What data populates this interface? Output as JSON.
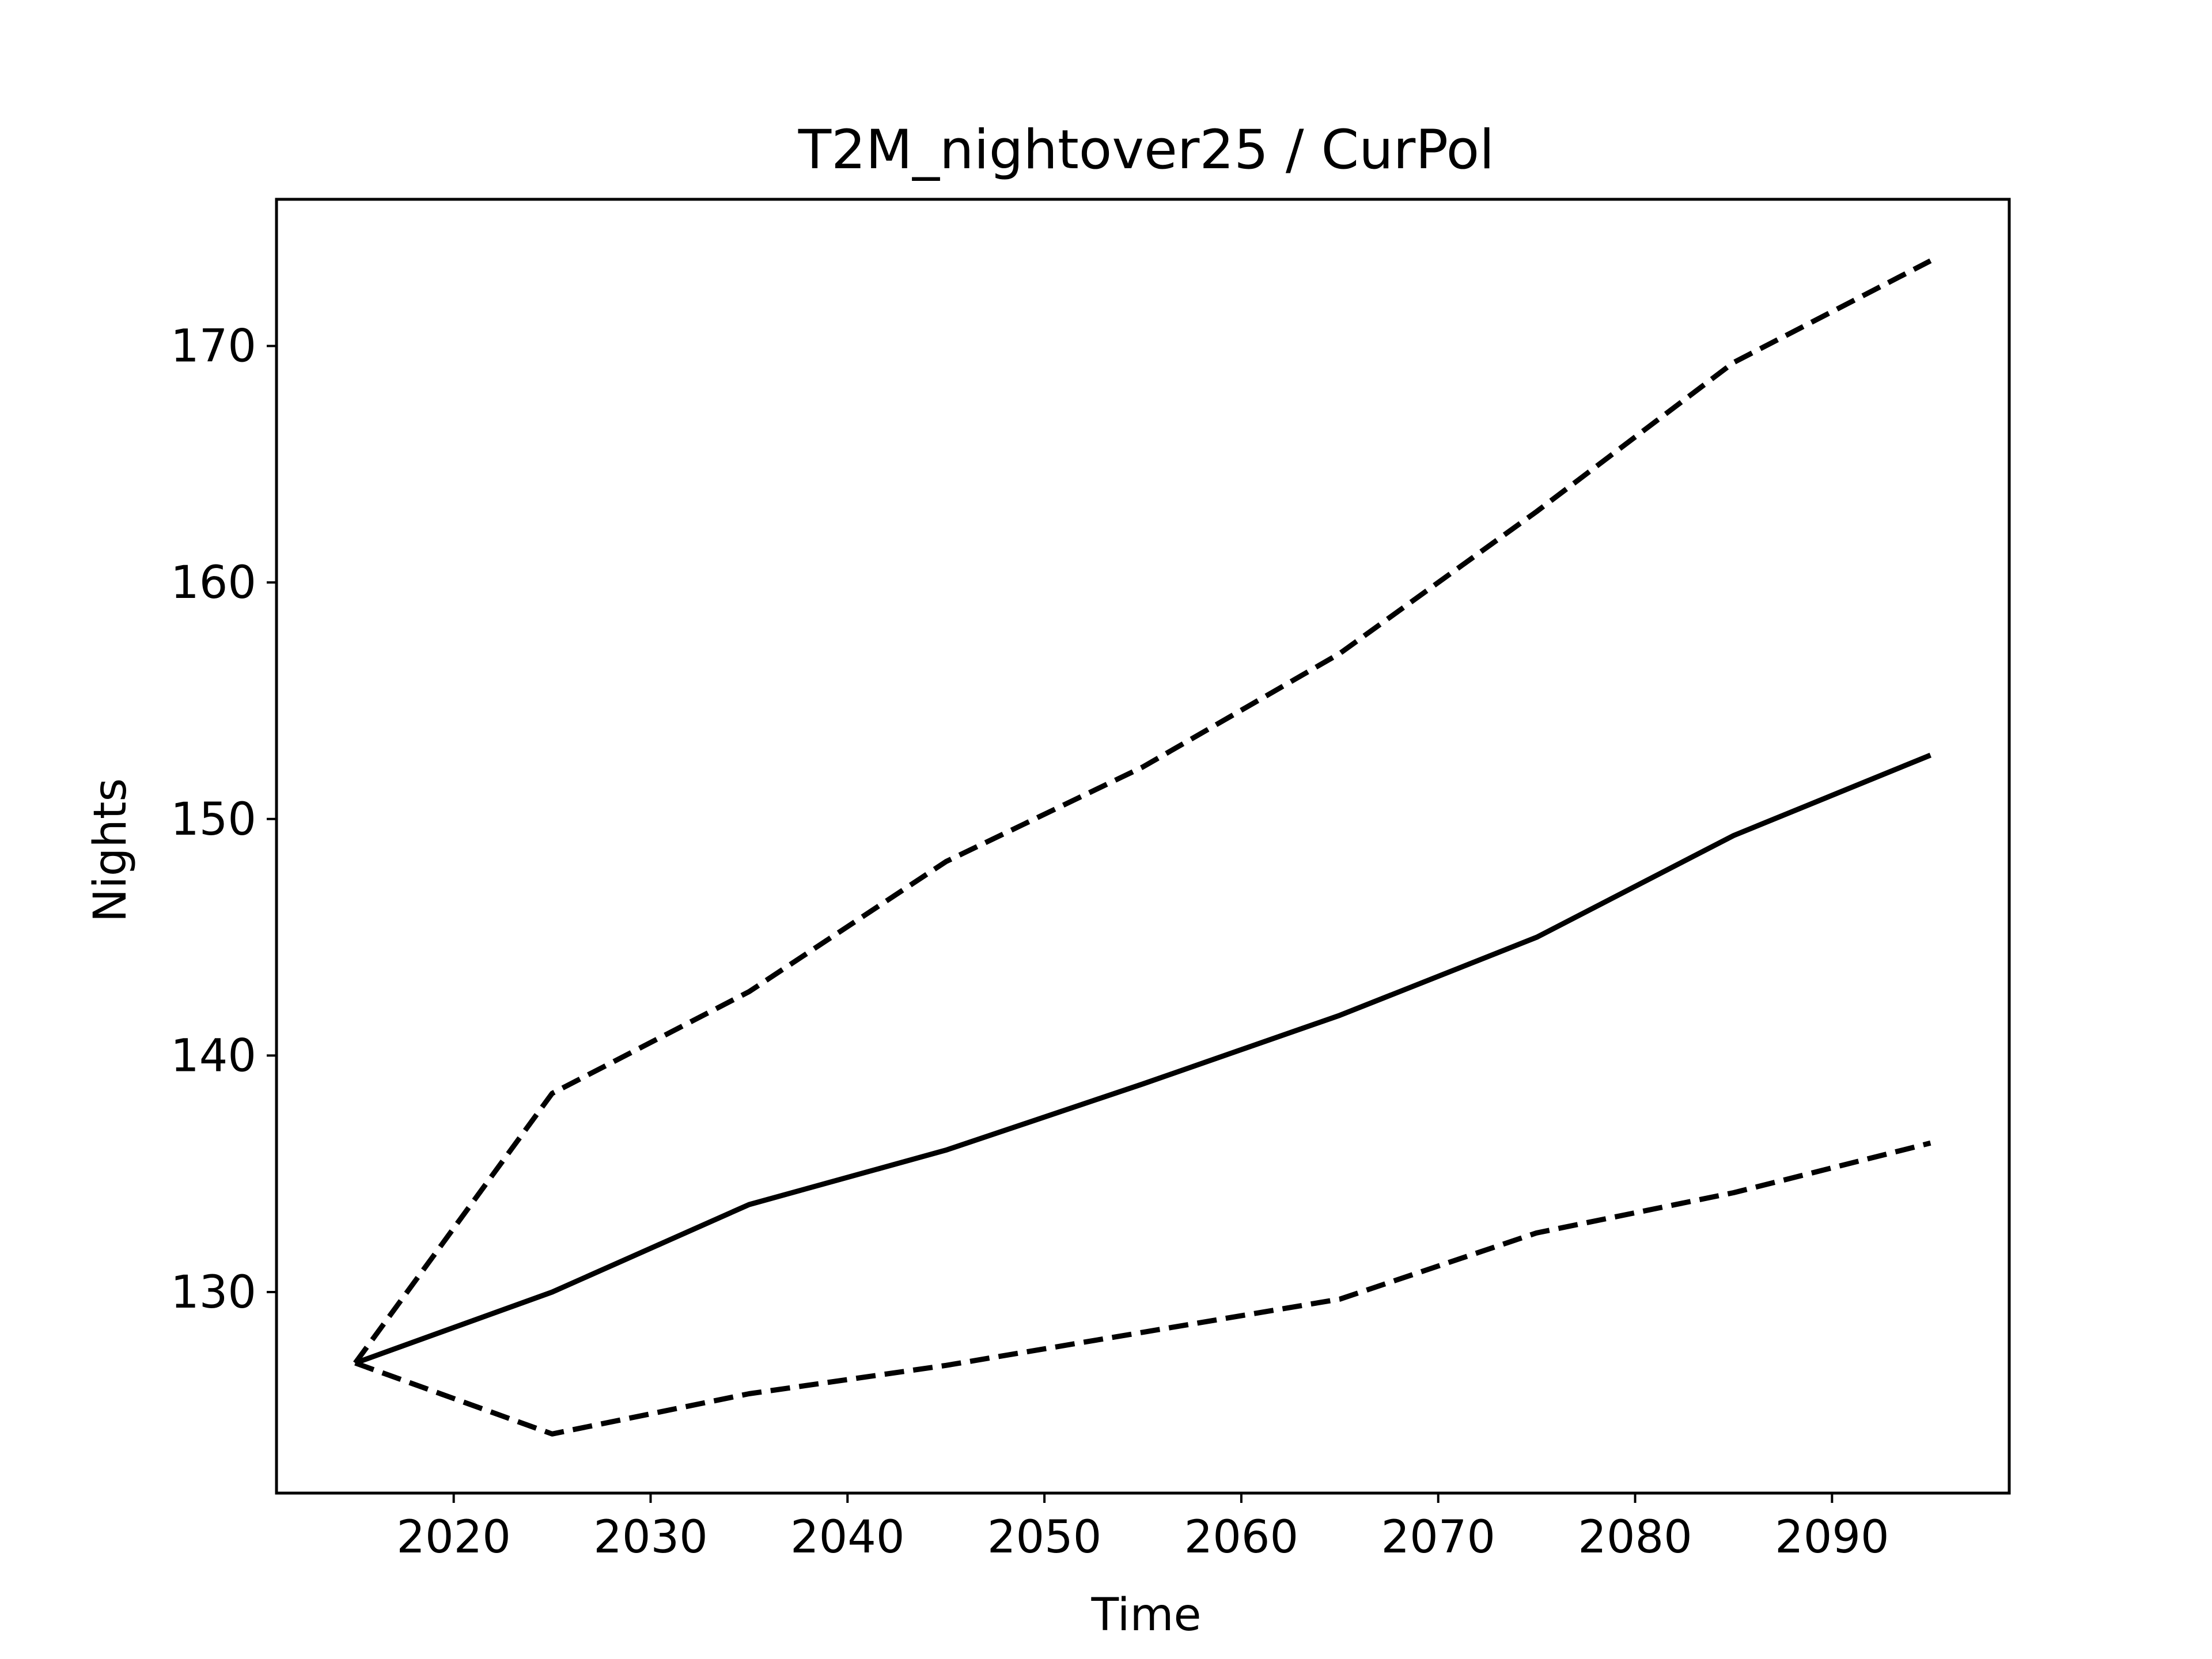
{
  "chart_data": {
    "type": "line",
    "title": "T2M_nightover25 / CurPol",
    "xlabel": "Time",
    "ylabel": "Nights",
    "xlim": [
      2011,
      2099
    ],
    "ylim": [
      121.5,
      176.2
    ],
    "xticks": [
      2020,
      2030,
      2040,
      2050,
      2060,
      2070,
      2080,
      2090
    ],
    "yticks": [
      130,
      140,
      150,
      160,
      170
    ],
    "grid": false,
    "legend": "none",
    "x": [
      2015,
      2025,
      2035,
      2045,
      2055,
      2065,
      2075,
      2085,
      2095
    ],
    "series": [
      {
        "style": "solid",
        "color": "#000000",
        "values": [
          127.0,
          130.0,
          133.7,
          136.0,
          138.8,
          141.7,
          145.0,
          149.3,
          152.7
        ]
      },
      {
        "style": "dashed",
        "color": "#000000",
        "values": [
          127.0,
          138.4,
          142.7,
          148.2,
          152.2,
          157.0,
          163.0,
          169.3,
          173.6
        ]
      },
      {
        "style": "dashed",
        "color": "#000000",
        "values": [
          127.0,
          124.0,
          125.7,
          126.9,
          128.3,
          129.7,
          132.5,
          134.2,
          136.3
        ]
      }
    ]
  }
}
